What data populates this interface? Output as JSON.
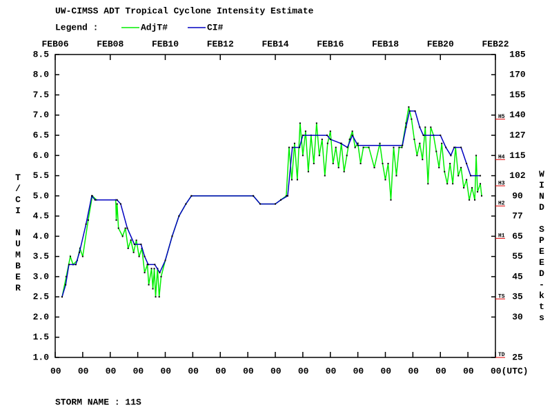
{
  "chart_data": {
    "type": "line",
    "title": "UW-CIMSS ADT Tropical Cyclone Intensity Estimate",
    "legend_title": "Legend :",
    "ylabel": "T/CI NUMBER",
    "y2label": "WIND SPEED-kts",
    "footer": "STORM NAME : 11S",
    "xlim": [
      0,
      16
    ],
    "xticks": [
      {
        "value": 0,
        "label": "FEB06"
      },
      {
        "value": 2,
        "label": "FEB08"
      },
      {
        "value": 4,
        "label": "FEB10"
      },
      {
        "value": 6,
        "label": "FEB12"
      },
      {
        "value": 8,
        "label": "FEB14"
      },
      {
        "value": 10,
        "label": "FEB16"
      },
      {
        "value": 12,
        "label": "FEB18"
      },
      {
        "value": 14,
        "label": "FEB20"
      },
      {
        "value": 16,
        "label": "FEB22"
      }
    ],
    "xticks_hours": [
      {
        "value": 0,
        "label": "00"
      },
      {
        "value": 1,
        "label": "00"
      },
      {
        "value": 2,
        "label": "00"
      },
      {
        "value": 3,
        "label": "00"
      },
      {
        "value": 4,
        "label": "00"
      },
      {
        "value": 5,
        "label": "00"
      },
      {
        "value": 6,
        "label": "00"
      },
      {
        "value": 7,
        "label": "00"
      },
      {
        "value": 8,
        "label": "00"
      },
      {
        "value": 9,
        "label": "00"
      },
      {
        "value": 10,
        "label": "00"
      },
      {
        "value": 11,
        "label": "00"
      },
      {
        "value": 12,
        "label": "00"
      },
      {
        "value": 13,
        "label": "00"
      },
      {
        "value": 14,
        "label": "00"
      },
      {
        "value": 15,
        "label": "00"
      },
      {
        "value": 16,
        "label": "00(UTC)"
      }
    ],
    "ylim": [
      1.0,
      8.5
    ],
    "yticks": [
      {
        "value": 1,
        "label": "1.0"
      },
      1.5,
      {
        "value": 2,
        "label": "2.0"
      },
      2.5,
      {
        "value": 3,
        "label": "3.0"
      },
      3.5,
      {
        "value": 4,
        "label": "4.0"
      },
      4.5,
      {
        "value": 5,
        "label": "5.0"
      },
      5.5,
      {
        "value": 6,
        "label": "6.0"
      },
      6.5,
      {
        "value": 7,
        "label": "7.0"
      },
      7.5,
      {
        "value": 8,
        "label": "8.0"
      },
      8.5
    ],
    "wind_scale": [
      {
        "ci": 8.5,
        "kts": 185
      },
      {
        "ci": 8.0,
        "kts": 170
      },
      {
        "ci": 7.5,
        "kts": 155
      },
      {
        "ci": 7.0,
        "kts": 140
      },
      {
        "ci": 6.5,
        "kts": 127
      },
      {
        "ci": 6.0,
        "kts": 115
      },
      {
        "ci": 5.5,
        "kts": 102
      },
      {
        "ci": 5.0,
        "kts": 90
      },
      {
        "ci": 4.5,
        "kts": 77
      },
      {
        "ci": 4.0,
        "kts": 65
      },
      {
        "ci": 3.5,
        "kts": 55
      },
      {
        "ci": 3.0,
        "kts": 45
      },
      {
        "ci": 2.5,
        "kts": 35
      },
      {
        "ci": 2.0,
        "kts": 30
      },
      {
        "ci": 1.0,
        "kts": 25
      }
    ],
    "intensity_markers": {
      "color": "#e00000",
      "items": [
        {
          "label": "H5",
          "ci": 6.95
        },
        {
          "label": "H4",
          "ci": 5.95
        },
        {
          "label": "H3",
          "ci": 5.3
        },
        {
          "label": "H2",
          "ci": 4.8
        },
        {
          "label": "H1",
          "ci": 4.0
        },
        {
          "label": "TS",
          "ci": 2.5
        },
        {
          "label": "TD",
          "ci": 1.05
        }
      ]
    },
    "series": [
      {
        "name": "AdjT#",
        "color": "#00ee00",
        "x": [
          0.25,
          0.4,
          0.55,
          0.65,
          0.8,
          0.9,
          1.0,
          1.2,
          1.35,
          1.5,
          2.2,
          2.22,
          2.25,
          2.3,
          2.45,
          2.55,
          2.65,
          2.75,
          2.85,
          2.95,
          3.05,
          3.15,
          3.25,
          3.35,
          3.4,
          3.5,
          3.55,
          3.6,
          3.65,
          3.72,
          3.78,
          3.85,
          4.0,
          4.25,
          4.5,
          4.75,
          4.95,
          7.2,
          7.45,
          8.0,
          8.2,
          8.4,
          8.5,
          8.6,
          8.7,
          8.8,
          8.9,
          9.0,
          9.1,
          9.2,
          9.3,
          9.4,
          9.5,
          9.6,
          9.7,
          9.8,
          9.9,
          10.0,
          10.1,
          10.2,
          10.3,
          10.4,
          10.5,
          10.6,
          10.7,
          10.8,
          10.9,
          11.0,
          11.1,
          11.2,
          11.4,
          11.6,
          11.8,
          11.9,
          12.0,
          12.1,
          12.2,
          12.3,
          12.4,
          12.5,
          12.6,
          12.75,
          12.85,
          12.95,
          13.05,
          13.15,
          13.25,
          13.35,
          13.45,
          13.55,
          13.65,
          13.75,
          13.85,
          13.95,
          14.05,
          14.15,
          14.25,
          14.35,
          14.45,
          14.55,
          14.65,
          14.75,
          14.85,
          14.95,
          15.05,
          15.15,
          15.25,
          15.3,
          15.35,
          15.45,
          15.5
        ],
        "values": [
          2.5,
          3.0,
          3.5,
          3.3,
          3.4,
          3.7,
          3.5,
          4.4,
          5.0,
          4.9,
          4.9,
          4.4,
          4.8,
          4.2,
          4.0,
          4.2,
          3.7,
          3.9,
          3.6,
          3.9,
          3.5,
          3.7,
          3.1,
          3.3,
          2.8,
          3.2,
          2.7,
          3.2,
          2.5,
          3.2,
          2.5,
          3.0,
          3.4,
          4.0,
          4.5,
          4.8,
          5.0,
          5.0,
          4.8,
          4.8,
          4.9,
          5.0,
          6.2,
          5.4,
          6.3,
          5.4,
          6.8,
          6.0,
          6.6,
          5.6,
          6.5,
          5.8,
          6.8,
          6.0,
          6.4,
          5.5,
          6.3,
          6.6,
          5.8,
          6.2,
          5.7,
          6.3,
          5.6,
          6.0,
          6.4,
          6.6,
          6.2,
          6.3,
          5.8,
          6.2,
          6.2,
          5.7,
          6.3,
          5.8,
          5.4,
          5.8,
          4.9,
          6.2,
          5.5,
          6.2,
          6.2,
          6.8,
          7.2,
          6.9,
          6.4,
          6.0,
          6.3,
          5.9,
          6.7,
          5.3,
          6.7,
          6.5,
          6.1,
          5.7,
          6.3,
          5.6,
          5.3,
          5.8,
          5.3,
          6.2,
          5.5,
          5.7,
          5.2,
          5.4,
          4.9,
          5.2,
          4.9,
          6.0,
          5.1,
          5.3,
          5.0
        ]
      },
      {
        "name": "CI#",
        "color": "#0000c0",
        "x": [
          0.25,
          0.38,
          0.5,
          0.75,
          0.88,
          1.12,
          1.33,
          1.45,
          2.25,
          2.38,
          2.62,
          2.88,
          3.12,
          3.25,
          3.38,
          3.62,
          3.8,
          4.0,
          4.25,
          4.5,
          4.75,
          4.95,
          7.2,
          7.45,
          8.0,
          8.2,
          8.45,
          8.62,
          8.88,
          9.0,
          9.88,
          10.0,
          10.38,
          10.62,
          10.8,
          11.0,
          12.62,
          12.75,
          12.88,
          13.08,
          13.25,
          13.38,
          14.0,
          14.2,
          14.38,
          14.5,
          14.75,
          14.95,
          15.1,
          15.45
        ],
        "values": [
          2.5,
          2.8,
          3.3,
          3.3,
          3.6,
          4.3,
          5.0,
          4.9,
          4.9,
          4.8,
          4.2,
          3.8,
          3.8,
          3.5,
          3.3,
          3.3,
          3.1,
          3.4,
          4.0,
          4.5,
          4.8,
          5.0,
          5.0,
          4.8,
          4.8,
          4.9,
          5.0,
          6.2,
          6.2,
          6.5,
          6.5,
          6.4,
          6.3,
          6.2,
          6.5,
          6.25,
          6.25,
          6.7,
          7.1,
          7.1,
          6.7,
          6.5,
          6.5,
          6.2,
          6.0,
          6.2,
          6.2,
          5.8,
          5.5,
          5.5
        ]
      }
    ]
  }
}
